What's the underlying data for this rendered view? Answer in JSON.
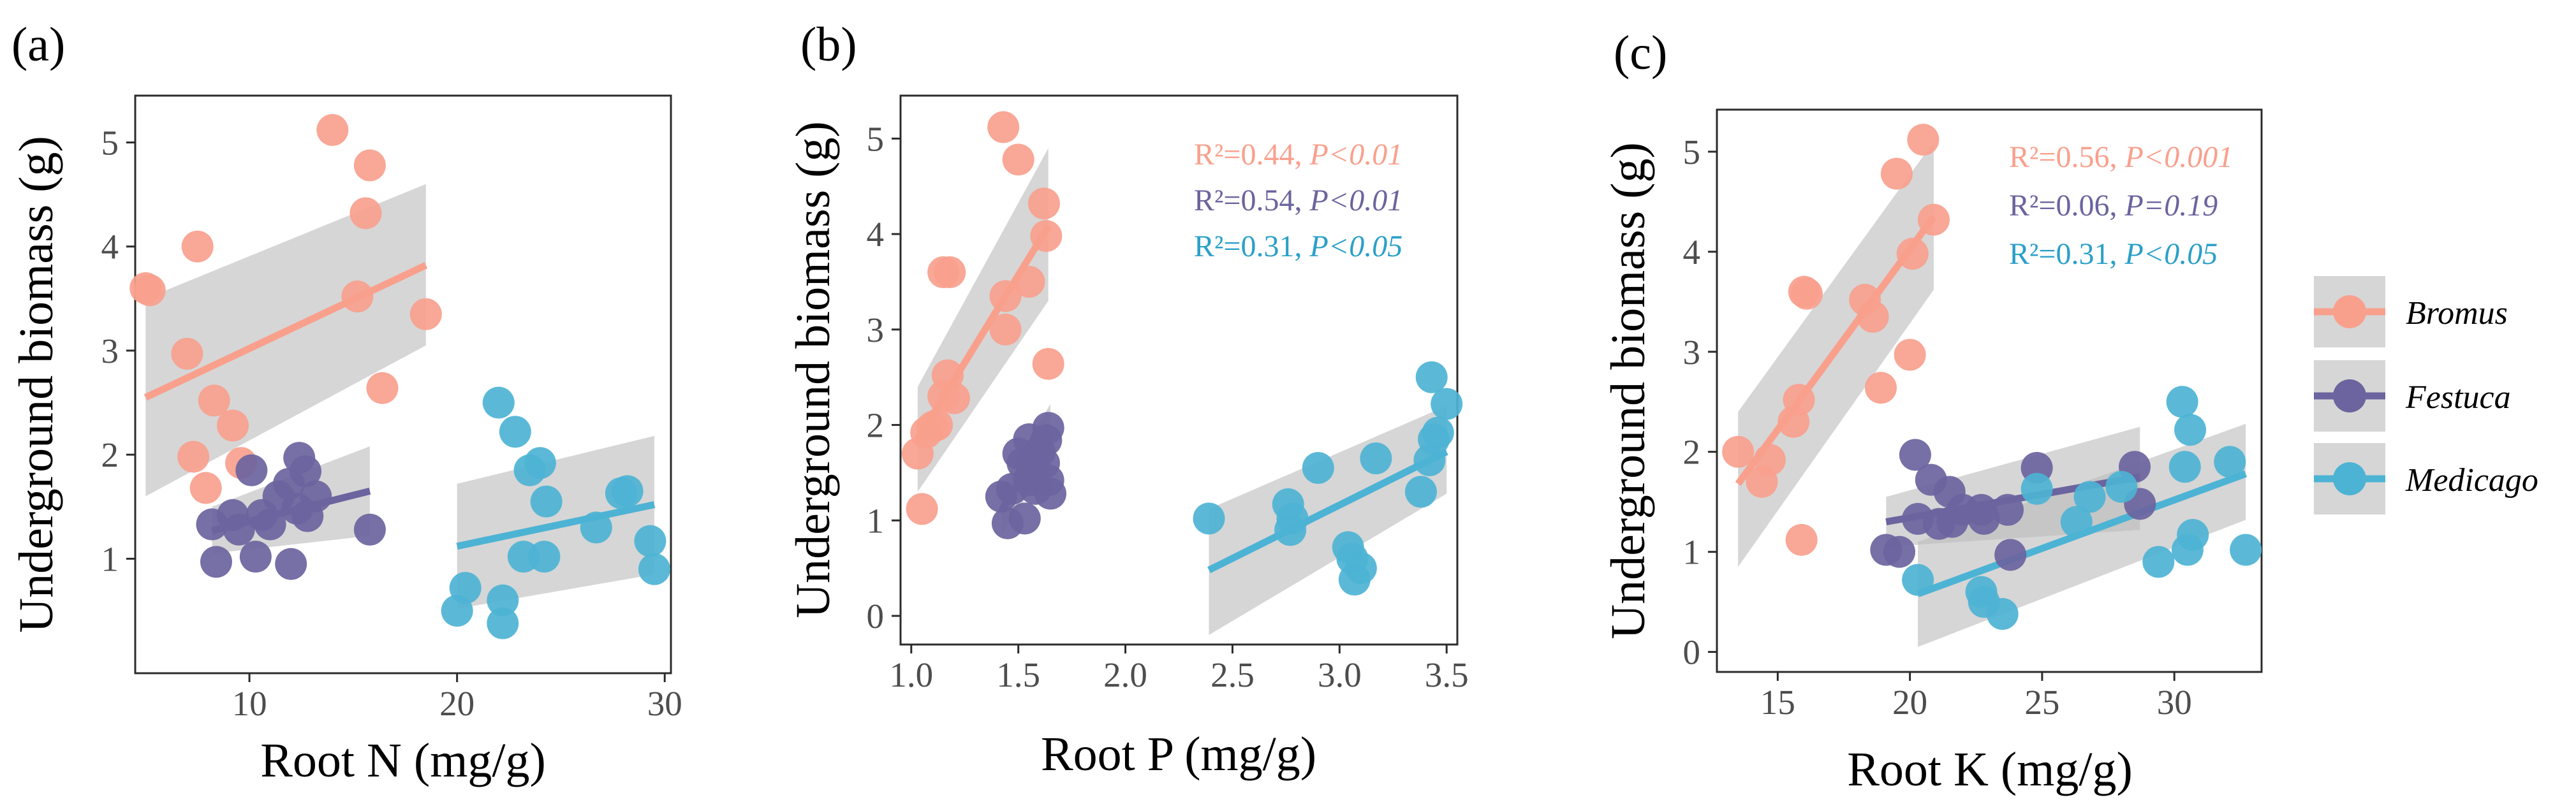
{
  "colors": {
    "bromus": "#f9a08d",
    "festuca": "#6b649e",
    "medicago": "#4db3d4",
    "band": "#bdbdbd",
    "stat_bromus": "#f9a08d",
    "stat_festuca": "#6b649e",
    "stat_medicago": "#2aa0c8"
  },
  "legend": {
    "items": [
      {
        "key": "bromus",
        "label": "Bromus"
      },
      {
        "key": "festuca",
        "label": "Festuca"
      },
      {
        "key": "medicago",
        "label": "Medicago"
      }
    ]
  },
  "chart_data": [
    {
      "type": "scatter",
      "tag": "(a)",
      "xlabel": "Root N (mg/g)",
      "ylabel": "Underground biomass (g)",
      "xlim": [
        4.5,
        30.3
      ],
      "ylim": [
        -0.1,
        5.45
      ],
      "xticks": [
        10,
        20,
        30
      ],
      "yticks": [
        1,
        2,
        3,
        4,
        5
      ],
      "stats": [],
      "series": [
        {
          "key": "bromus",
          "name": "Bromus",
          "points": [
            [
              5.0,
              3.6
            ],
            [
              5.2,
              3.58
            ],
            [
              7.0,
              2.97
            ],
            [
              7.5,
              4.0
            ],
            [
              7.3,
              1.98
            ],
            [
              7.9,
              1.68
            ],
            [
              8.3,
              2.52
            ],
            [
              9.2,
              2.28
            ],
            [
              9.6,
              1.92
            ],
            [
              14.0,
              5.12
            ],
            [
              15.2,
              3.52
            ],
            [
              15.6,
              4.32
            ],
            [
              15.8,
              4.78
            ],
            [
              16.4,
              2.64
            ],
            [
              18.5,
              3.35
            ]
          ],
          "fit": {
            "x": [
              5.0,
              18.5
            ],
            "y": [
              2.55,
              3.82
            ],
            "lower": [
              1.6,
              3.05
            ],
            "upper": [
              3.5,
              4.6
            ]
          }
        },
        {
          "key": "festuca",
          "name": "Festuca",
          "points": [
            [
              8.2,
              1.33
            ],
            [
              8.4,
              0.97
            ],
            [
              9.2,
              1.42
            ],
            [
              9.5,
              1.28
            ],
            [
              10.1,
              1.85
            ],
            [
              10.3,
              1.02
            ],
            [
              10.6,
              1.42
            ],
            [
              11.0,
              1.33
            ],
            [
              11.4,
              1.6
            ],
            [
              11.9,
              1.72
            ],
            [
              12.0,
              0.95
            ],
            [
              12.3,
              1.48
            ],
            [
              12.4,
              1.97
            ],
            [
              12.7,
              1.84
            ],
            [
              12.8,
              1.41
            ],
            [
              13.2,
              1.6
            ],
            [
              15.8,
              1.28
            ]
          ],
          "fit": {
            "x": [
              8.2,
              15.8
            ],
            "y": [
              1.27,
              1.65
            ],
            "lower": [
              1.05,
              1.22
            ],
            "upper": [
              1.5,
              2.08
            ]
          }
        },
        {
          "key": "medicago",
          "name": "Medicago",
          "points": [
            [
              20.0,
              0.5
            ],
            [
              20.4,
              0.72
            ],
            [
              22.0,
              2.5
            ],
            [
              22.2,
              0.6
            ],
            [
              22.2,
              0.38
            ],
            [
              22.8,
              2.22
            ],
            [
              23.2,
              1.02
            ],
            [
              23.5,
              1.85
            ],
            [
              24.0,
              1.92
            ],
            [
              24.2,
              1.02
            ],
            [
              24.3,
              1.55
            ],
            [
              26.7,
              1.3
            ],
            [
              27.9,
              1.63
            ],
            [
              28.2,
              1.65
            ],
            [
              29.3,
              1.17
            ],
            [
              29.5,
              0.9
            ]
          ],
          "fit": {
            "x": [
              20.0,
              29.5
            ],
            "y": [
              1.12,
              1.52
            ],
            "lower": [
              0.52,
              0.85
            ],
            "upper": [
              1.72,
              2.18
            ]
          }
        }
      ]
    },
    {
      "type": "scatter",
      "tag": "(b)",
      "xlabel": "Root P (mg/g)",
      "ylabel": "Underground biomass (g)",
      "xlim": [
        0.95,
        3.55
      ],
      "ylim": [
        -0.3,
        5.45
      ],
      "xticks": [
        1.0,
        1.5,
        2.0,
        2.5,
        3.0,
        3.5
      ],
      "yticks": [
        0,
        1,
        2,
        3,
        4,
        5
      ],
      "stats": [
        {
          "key": "bromus",
          "r2": "R²=0.44, ",
          "p": "P<0.01"
        },
        {
          "key": "festuca",
          "r2": "R²=0.54, ",
          "p": "P<0.01"
        },
        {
          "key": "medicago",
          "r2": "R²=0.31, ",
          "p": "P<0.05"
        }
      ],
      "series": [
        {
          "key": "bromus",
          "name": "Bromus",
          "points": [
            [
              1.03,
              1.7
            ],
            [
              1.05,
              1.12
            ],
            [
              1.07,
              1.92
            ],
            [
              1.1,
              1.98
            ],
            [
              1.12,
              2.0
            ],
            [
              1.15,
              2.3
            ],
            [
              1.15,
              3.6
            ],
            [
              1.17,
              2.52
            ],
            [
              1.18,
              3.6
            ],
            [
              1.2,
              2.28
            ],
            [
              1.43,
              5.12
            ],
            [
              1.44,
              3.35
            ],
            [
              1.44,
              3.0
            ],
            [
              1.5,
              4.78
            ],
            [
              1.55,
              3.5
            ],
            [
              1.62,
              4.32
            ],
            [
              1.63,
              3.98
            ],
            [
              1.64,
              2.64
            ]
          ],
          "fit": {
            "x": [
              1.03,
              1.64
            ],
            "y": [
              1.85,
              4.08
            ],
            "lower": [
              1.3,
              3.3
            ],
            "upper": [
              2.4,
              4.9
            ]
          }
        },
        {
          "key": "festuca",
          "name": "Festuca",
          "points": [
            [
              1.42,
              1.25
            ],
            [
              1.45,
              0.97
            ],
            [
              1.47,
              1.33
            ],
            [
              1.5,
              1.7
            ],
            [
              1.52,
              1.6
            ],
            [
              1.53,
              1.02
            ],
            [
              1.55,
              1.85
            ],
            [
              1.55,
              1.42
            ],
            [
              1.57,
              1.48
            ],
            [
              1.58,
              1.33
            ],
            [
              1.6,
              1.72
            ],
            [
              1.62,
              1.6
            ],
            [
              1.63,
              1.84
            ],
            [
              1.64,
              1.97
            ],
            [
              1.64,
              1.42
            ],
            [
              1.65,
              1.28
            ]
          ],
          "fit": {
            "x": [
              1.42,
              1.65
            ],
            "y": [
              1.1,
              1.92
            ],
            "lower": [
              0.85,
              1.62
            ],
            "upper": [
              1.35,
              2.22
            ]
          }
        },
        {
          "key": "medicago",
          "name": "Medicago",
          "points": [
            [
              2.39,
              1.02
            ],
            [
              2.76,
              1.17
            ],
            [
              2.77,
              0.9
            ],
            [
              2.78,
              1.02
            ],
            [
              2.9,
              1.55
            ],
            [
              3.04,
              0.72
            ],
            [
              3.06,
              0.6
            ],
            [
              3.07,
              0.38
            ],
            [
              3.1,
              0.5
            ],
            [
              3.17,
              1.65
            ],
            [
              3.38,
              1.3
            ],
            [
              3.42,
              1.63
            ],
            [
              3.43,
              2.5
            ],
            [
              3.44,
              1.85
            ],
            [
              3.46,
              1.92
            ],
            [
              3.5,
              2.22
            ]
          ],
          "fit": {
            "x": [
              2.39,
              3.5
            ],
            "y": [
              0.48,
              1.72
            ],
            "lower": [
              -0.2,
              1.28
            ],
            "upper": [
              1.12,
              2.2
            ]
          }
        }
      ]
    },
    {
      "type": "scatter",
      "tag": "(c)",
      "xlabel": "Root K (mg/g)",
      "ylabel": "Underground biomass (g)",
      "xlim": [
        12.7,
        33.3
      ],
      "ylim": [
        -0.2,
        5.42
      ],
      "xticks": [
        15,
        20,
        25,
        30
      ],
      "yticks": [
        0,
        1,
        2,
        3,
        4,
        5
      ],
      "stats": [
        {
          "key": "bromus",
          "r2": "R²=0.56, ",
          "p": "P<0.001"
        },
        {
          "key": "festuca",
          "r2": "R²=0.06, ",
          "p": "P=0.19"
        },
        {
          "key": "medicago",
          "r2": "R²=0.31, ",
          "p": "P<0.05"
        }
      ],
      "series": [
        {
          "key": "bromus",
          "name": "Bromus",
          "points": [
            [
              13.5,
              2.0
            ],
            [
              14.4,
              1.7
            ],
            [
              14.7,
              1.92
            ],
            [
              15.6,
              2.3
            ],
            [
              15.8,
              2.52
            ],
            [
              15.9,
              1.12
            ],
            [
              16.0,
              3.6
            ],
            [
              16.1,
              3.58
            ],
            [
              18.3,
              3.52
            ],
            [
              18.6,
              3.35
            ],
            [
              18.9,
              2.64
            ],
            [
              19.5,
              4.78
            ],
            [
              20.0,
              2.97
            ],
            [
              20.1,
              3.98
            ],
            [
              20.5,
              5.12
            ],
            [
              20.9,
              4.32
            ]
          ],
          "fit": {
            "x": [
              13.5,
              20.9
            ],
            "y": [
              1.68,
              4.35
            ],
            "lower": [
              0.85,
              3.62
            ],
            "upper": [
              2.4,
              5.1
            ]
          }
        },
        {
          "key": "festuca",
          "name": "Festuca",
          "points": [
            [
              19.1,
              1.02
            ],
            [
              19.6,
              1.0
            ],
            [
              20.2,
              1.97
            ],
            [
              20.3,
              1.33
            ],
            [
              20.8,
              1.72
            ],
            [
              21.1,
              1.28
            ],
            [
              21.5,
              1.6
            ],
            [
              21.6,
              1.3
            ],
            [
              22.0,
              1.42
            ],
            [
              22.7,
              1.42
            ],
            [
              22.8,
              1.33
            ],
            [
              23.7,
              1.42
            ],
            [
              23.8,
              0.97
            ],
            [
              24.8,
              1.84
            ],
            [
              28.5,
              1.85
            ],
            [
              28.7,
              1.48
            ]
          ],
          "fit": {
            "x": [
              19.1,
              28.7
            ],
            "y": [
              1.3,
              1.75
            ],
            "lower": [
              1.05,
              1.22
            ],
            "upper": [
              1.55,
              2.25
            ]
          }
        },
        {
          "key": "medicago",
          "name": "Medicago",
          "points": [
            [
              20.3,
              0.72
            ],
            [
              22.7,
              0.6
            ],
            [
              22.8,
              0.5
            ],
            [
              23.5,
              0.38
            ],
            [
              24.8,
              1.63
            ],
            [
              26.3,
              1.3
            ],
            [
              26.8,
              1.55
            ],
            [
              28.0,
              1.65
            ],
            [
              29.4,
              0.9
            ],
            [
              30.3,
              2.5
            ],
            [
              30.4,
              1.85
            ],
            [
              30.5,
              1.02
            ],
            [
              30.6,
              2.22
            ],
            [
              30.7,
              1.17
            ],
            [
              32.1,
              1.9
            ],
            [
              32.7,
              1.02
            ]
          ],
          "fit": {
            "x": [
              20.3,
              32.7
            ],
            "y": [
              0.58,
              1.78
            ],
            "lower": [
              0.05,
              1.32
            ],
            "upper": [
              1.1,
              2.28
            ]
          }
        }
      ]
    }
  ]
}
